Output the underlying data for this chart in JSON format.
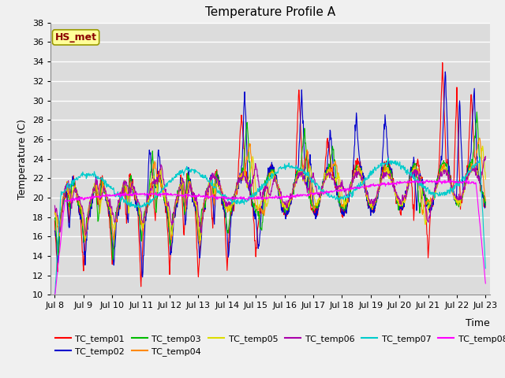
{
  "title": "Temperature Profile A",
  "xlabel": "Time",
  "ylabel": "Temperature (C)",
  "ylim": [
    10,
    38
  ],
  "xtick_labels": [
    "Jul 8",
    "Jul 9",
    "Jul 10",
    "Jul 11",
    "Jul 12",
    "Jul 13",
    "Jul 14",
    "Jul 15",
    "Jul 16",
    "Jul 17",
    "Jul 18",
    "Jul 19",
    "Jul 20",
    "Jul 21",
    "Jul 22",
    "Jul 23"
  ],
  "annotation_text": "HS_met",
  "annotation_color": "#8B0000",
  "annotation_bg": "#FFFF99",
  "annotation_border": "#999900",
  "series_colors": {
    "TC_temp01": "#FF0000",
    "TC_temp02": "#0000CC",
    "TC_temp03": "#00BB00",
    "TC_temp04": "#FF8800",
    "TC_temp05": "#DDDD00",
    "TC_temp06": "#AA00AA",
    "TC_temp07": "#00CCCC",
    "TC_temp08": "#FF00FF"
  },
  "plot_bg_color": "#DCDCDC",
  "fig_bg_color": "#F0F0F0",
  "grid_color": "#FFFFFF",
  "title_fontsize": 11,
  "axis_label_fontsize": 9,
  "tick_fontsize": 8,
  "legend_fontsize": 8
}
